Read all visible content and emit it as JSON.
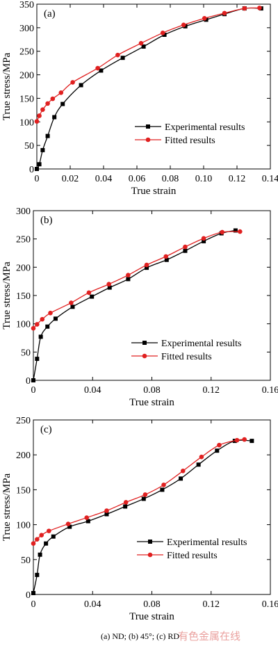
{
  "caption": "(a) ND; (b) 45°; (c) RD",
  "watermark": "有色金属在线",
  "chart_data": [
    {
      "type": "line",
      "panel_label": "(a)",
      "xlabel": "True strain",
      "ylabel": "True stress/MPa",
      "xlim": [
        0,
        0.14
      ],
      "ylim": [
        0,
        350
      ],
      "xticks": [
        0,
        0.02,
        0.04,
        0.06,
        0.08,
        0.1,
        0.12,
        0.14
      ],
      "xtick_labels": [
        "0",
        "0.02",
        "0.04",
        "0.06",
        "0.08",
        "0.10",
        "0.12",
        "0.14"
      ],
      "yticks": [
        0,
        50,
        100,
        150,
        200,
        250,
        300,
        350
      ],
      "ytick_labels": [
        "0",
        "50",
        "100",
        "150",
        "200",
        "250",
        "300",
        "350"
      ],
      "legend_position": "lower-right",
      "series": [
        {
          "name": "Experimental results",
          "color": "#000000",
          "marker": "square",
          "x": [
            0,
            0.0015,
            0.0035,
            0.0065,
            0.0105,
            0.0155,
            0.0265,
            0.0385,
            0.0515,
            0.064,
            0.0765,
            0.089,
            0.1015,
            0.1125,
            0.1245,
            0.1345
          ],
          "y": [
            0,
            10,
            40,
            70,
            110,
            138,
            178,
            209,
            236,
            260,
            285,
            303,
            317,
            329,
            341,
            341
          ]
        },
        {
          "name": "Fitted results",
          "color": "#e02020",
          "marker": "circle",
          "x": [
            0,
            0.0015,
            0.0035,
            0.0065,
            0.0095,
            0.0145,
            0.0215,
            0.0365,
            0.0485,
            0.0625,
            0.0755,
            0.088,
            0.1005,
            0.1125,
            0.1245,
            0.1335
          ],
          "y": [
            101,
            113,
            126,
            139,
            149,
            162,
            184,
            214,
            242,
            267,
            289,
            306,
            320,
            331,
            341,
            342
          ]
        }
      ]
    },
    {
      "type": "line",
      "panel_label": "(b)",
      "xlabel": "True strain",
      "ylabel": "True stress/MPa",
      "xlim": [
        0,
        0.16
      ],
      "ylim": [
        0,
        300
      ],
      "xticks": [
        0,
        0.04,
        0.08,
        0.12,
        0.16
      ],
      "xtick_labels": [
        "0",
        "0.04",
        "0.08",
        "0.12",
        "0.16"
      ],
      "yticks": [
        0,
        50,
        100,
        150,
        200,
        250,
        300
      ],
      "ytick_labels": [
        "0",
        "50",
        "100",
        "150",
        "200",
        "250",
        "300"
      ],
      "legend_position": "lower-right",
      "series": [
        {
          "name": "Experimental results",
          "color": "#000000",
          "marker": "square",
          "x": [
            0,
            0.0025,
            0.005,
            0.0095,
            0.015,
            0.0265,
            0.0395,
            0.0515,
            0.064,
            0.0765,
            0.09,
            0.1025,
            0.115,
            0.127,
            0.1365
          ],
          "y": [
            0,
            38,
            77,
            95,
            109,
            130,
            148,
            164,
            179,
            199,
            213,
            229,
            246,
            260,
            265
          ]
        },
        {
          "name": "Fitted results",
          "color": "#e02020",
          "marker": "circle",
          "x": [
            0,
            0.0025,
            0.006,
            0.0115,
            0.0255,
            0.0375,
            0.051,
            0.064,
            0.0765,
            0.0895,
            0.1025,
            0.115,
            0.1275,
            0.1395
          ],
          "y": [
            92,
            99,
            108,
            119,
            137,
            155,
            170,
            186,
            204,
            219,
            236,
            251,
            262,
            263
          ]
        }
      ]
    },
    {
      "type": "line",
      "panel_label": "(c)",
      "xlabel": "True strain",
      "ylabel": "True stress/MPa",
      "xlim": [
        0,
        0.16
      ],
      "ylim": [
        0,
        250
      ],
      "xticks": [
        0,
        0.04,
        0.08,
        0.12,
        0.16
      ],
      "xtick_labels": [
        "0",
        "0.04",
        "0.08",
        "0.12",
        "0.16"
      ],
      "yticks": [
        0,
        50,
        100,
        150,
        200,
        250
      ],
      "ytick_labels": [
        "0",
        "50",
        "100",
        "150",
        "200",
        "250"
      ],
      "legend_position": "lower-right",
      "series": [
        {
          "name": "Experimental results",
          "color": "#000000",
          "marker": "square",
          "x": [
            0,
            0.0025,
            0.0045,
            0.0085,
            0.0135,
            0.0245,
            0.037,
            0.0495,
            0.062,
            0.0745,
            0.087,
            0.0995,
            0.1115,
            0.124,
            0.136,
            0.1475
          ],
          "y": [
            2,
            28,
            57,
            73,
            83,
            97,
            105,
            115,
            126,
            137,
            150,
            166,
            186,
            206,
            220,
            220
          ]
        },
        {
          "name": "Fitted results",
          "color": "#e02020",
          "marker": "circle",
          "x": [
            0,
            0.0025,
            0.0055,
            0.0105,
            0.0235,
            0.036,
            0.0495,
            0.0625,
            0.0755,
            0.088,
            0.101,
            0.1135,
            0.1255,
            0.1375,
            0.1425
          ],
          "y": [
            73,
            79,
            85,
            91,
            101,
            110,
            120,
            132,
            143,
            157,
            177,
            197,
            214,
            221,
            222
          ]
        }
      ]
    }
  ]
}
